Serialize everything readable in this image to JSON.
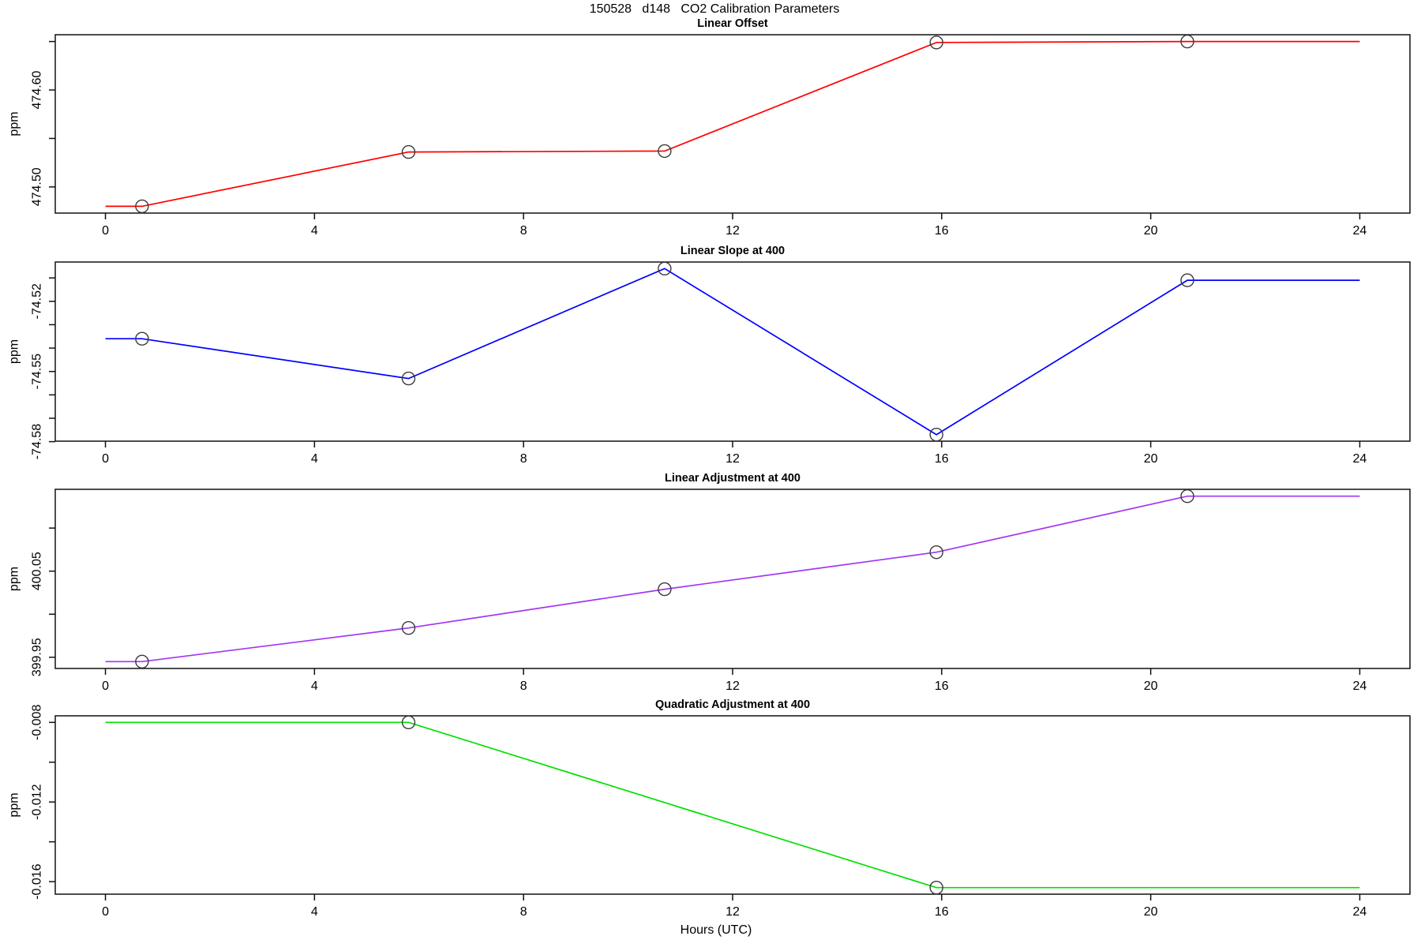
{
  "header": {
    "title": "150528   d148   CO2 Calibration Parameters"
  },
  "x_axis": {
    "label": "Hours (UTC)",
    "ticks": [
      {
        "v": 0,
        "label": "0"
      },
      {
        "v": 4,
        "label": "4"
      },
      {
        "v": 8,
        "label": "8"
      },
      {
        "v": 12,
        "label": "12"
      },
      {
        "v": 16,
        "label": "16"
      },
      {
        "v": 20,
        "label": "20"
      },
      {
        "v": 24,
        "label": "24"
      }
    ],
    "xlim": [
      -0.96,
      24.96
    ]
  },
  "marker": {
    "shape": "open-circle",
    "color": "#3a3a3a"
  },
  "chart_data": [
    {
      "type": "line",
      "title": "Linear Offset",
      "ylabel": "ppm",
      "color": "#ff0000",
      "ylim": [
        474.473,
        474.657
      ],
      "yticks": [
        {
          "v": 474.65,
          "label": ""
        },
        {
          "v": 474.6,
          "label": "474.60"
        },
        {
          "v": 474.55,
          "label": ""
        },
        {
          "v": 474.5,
          "label": "474.50"
        }
      ],
      "points": {
        "x": [
          0.7,
          5.8,
          10.7,
          15.9,
          20.7
        ],
        "y": [
          474.48,
          474.536,
          474.537,
          474.649,
          474.65
        ]
      },
      "line": [
        [
          0,
          474.48
        ],
        [
          0.7,
          474.48
        ],
        [
          5.8,
          474.536
        ],
        [
          10.7,
          474.537
        ],
        [
          15.9,
          474.649
        ],
        [
          20.7,
          474.65
        ],
        [
          24,
          474.65
        ]
      ]
    },
    {
      "type": "line",
      "title": "Linear Slope at 400",
      "ylabel": "ppm",
      "color": "#0000ff",
      "ylim": [
        -74.5798,
        -74.5032
      ],
      "yticks": [
        {
          "v": -74.51,
          "label": ""
        },
        {
          "v": -74.52,
          "label": "-74.52"
        },
        {
          "v": -74.53,
          "label": ""
        },
        {
          "v": -74.54,
          "label": ""
        },
        {
          "v": -74.55,
          "label": "-74.55"
        },
        {
          "v": -74.56,
          "label": ""
        },
        {
          "v": -74.57,
          "label": ""
        },
        {
          "v": -74.58,
          "label": "-74.58"
        }
      ],
      "points": {
        "x": [
          0.7,
          5.8,
          10.7,
          15.9,
          20.7
        ],
        "y": [
          -74.536,
          -74.553,
          -74.506,
          -74.577,
          -74.511
        ]
      },
      "line": [
        [
          0,
          -74.536
        ],
        [
          0.7,
          -74.536
        ],
        [
          5.8,
          -74.553
        ],
        [
          10.7,
          -74.506
        ],
        [
          15.9,
          -74.577
        ],
        [
          20.7,
          -74.511
        ],
        [
          24,
          -74.511
        ]
      ]
    },
    {
      "type": "line",
      "title": "Linear Adjustment at 400",
      "ylabel": "ppm",
      "color": "#a335f2",
      "ylim": [
        399.937,
        400.145
      ],
      "yticks": [
        {
          "v": 400.1,
          "label": ""
        },
        {
          "v": 400.05,
          "label": "400.05"
        },
        {
          "v": 400.0,
          "label": ""
        },
        {
          "v": 399.95,
          "label": "399.95"
        }
      ],
      "points": {
        "x": [
          0.7,
          5.8,
          10.7,
          15.9,
          20.7
        ],
        "y": [
          399.945,
          399.984,
          400.029,
          400.072,
          400.137
        ]
      },
      "line": [
        [
          0,
          399.945
        ],
        [
          0.7,
          399.945
        ],
        [
          5.8,
          399.984
        ],
        [
          10.7,
          400.029
        ],
        [
          15.9,
          400.072
        ],
        [
          20.7,
          400.137
        ],
        [
          24,
          400.137
        ]
      ]
    },
    {
      "type": "line",
      "title": "Quadratic Adjustment at 400",
      "ylabel": "ppm",
      "color": "#00e000",
      "ylim": [
        -0.01663,
        -0.00767
      ],
      "yticks": [
        {
          "v": -0.008,
          "label": "-0.008"
        },
        {
          "v": -0.01,
          "label": ""
        },
        {
          "v": -0.012,
          "label": "-0.012"
        },
        {
          "v": -0.014,
          "label": ""
        },
        {
          "v": -0.016,
          "label": "-0.016"
        }
      ],
      "points": {
        "x": [
          5.8,
          15.9
        ],
        "y": [
          -0.008,
          -0.0163
        ]
      },
      "line": [
        [
          0,
          -0.008
        ],
        [
          5.8,
          -0.008
        ],
        [
          15.9,
          -0.0163
        ],
        [
          24,
          -0.0163
        ]
      ]
    }
  ]
}
